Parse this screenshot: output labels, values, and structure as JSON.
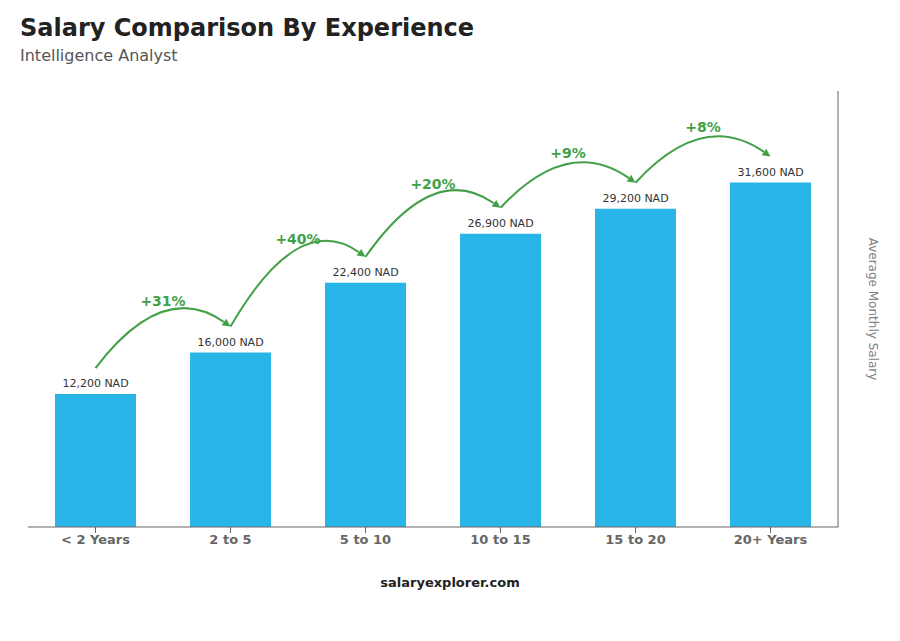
{
  "chart_data": {
    "type": "bar",
    "title": "Salary Comparison By Experience",
    "subtitle": "Intelligence Analyst",
    "categories": [
      "< 2 Years",
      "2 to 5",
      "5 to 10",
      "10 to 15",
      "15 to 20",
      "20+ Years"
    ],
    "values": [
      12200,
      16000,
      22400,
      26900,
      29200,
      31600
    ],
    "value_labels": [
      "12,200 NAD",
      "16,000 NAD",
      "22,400 NAD",
      "26,900 NAD",
      "29,200 NAD",
      "31,600 NAD"
    ],
    "data_labels": true,
    "annotations": [
      "+31%",
      "+40%",
      "+20%",
      "+9%",
      "+8%"
    ],
    "ylabel": "Average Monthly Salary",
    "footer": "salaryexplorer.com",
    "color": "#2ab5e8",
    "ylim": [
      0,
      40000
    ],
    "tick_labels": "x",
    "grid": false
  }
}
